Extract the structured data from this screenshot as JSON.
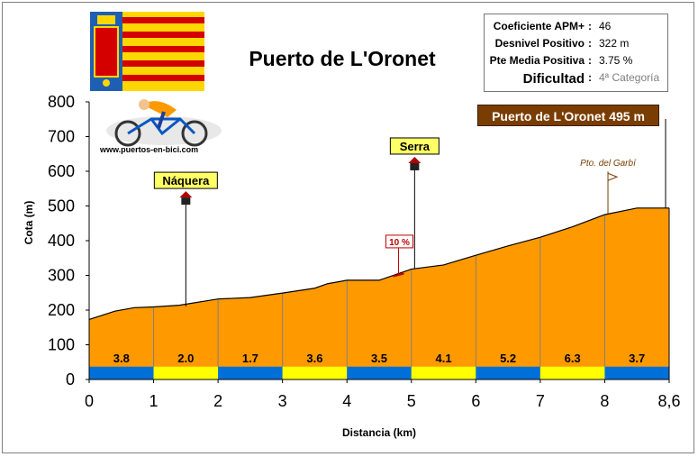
{
  "chart_data": {
    "type": "area",
    "title": "Puerto de L'Oronet",
    "xlabel": "Distancia (km)",
    "ylabel": "Cota (m)",
    "xlim": [
      0,
      9
    ],
    "ylim": [
      0,
      800
    ],
    "x_ticks": [
      "0",
      "1",
      "2",
      "3",
      "4",
      "5",
      "6",
      "7",
      "8",
      "8,6"
    ],
    "y_ticks": [
      "0",
      "100",
      "200",
      "300",
      "400",
      "500",
      "600",
      "700",
      "800"
    ],
    "profile": [
      {
        "x": 0,
        "y": 173
      },
      {
        "x": 0.4,
        "y": 197
      },
      {
        "x": 0.7,
        "y": 207
      },
      {
        "x": 1,
        "y": 209
      },
      {
        "x": 1.4,
        "y": 214
      },
      {
        "x": 2,
        "y": 232
      },
      {
        "x": 2.5,
        "y": 236
      },
      {
        "x": 3,
        "y": 249
      },
      {
        "x": 3.5,
        "y": 263
      },
      {
        "x": 3.7,
        "y": 276
      },
      {
        "x": 4,
        "y": 286
      },
      {
        "x": 4.5,
        "y": 286
      },
      {
        "x": 5,
        "y": 318
      },
      {
        "x": 5.5,
        "y": 330
      },
      {
        "x": 6,
        "y": 358
      },
      {
        "x": 6.5,
        "y": 385
      },
      {
        "x": 7,
        "y": 410
      },
      {
        "x": 7.5,
        "y": 440
      },
      {
        "x": 8,
        "y": 475
      },
      {
        "x": 8.5,
        "y": 494
      },
      {
        "x": 8.6,
        "y": 494
      }
    ],
    "segments": [
      {
        "from": 0,
        "to": 1,
        "slope": "3.8"
      },
      {
        "from": 1,
        "to": 2,
        "slope": "2.0"
      },
      {
        "from": 2,
        "to": 3,
        "slope": "1.7"
      },
      {
        "from": 3,
        "to": 4,
        "slope": "3.6"
      },
      {
        "from": 4,
        "to": 5,
        "slope": "3.5"
      },
      {
        "from": 5,
        "to": 6,
        "slope": "4.1"
      },
      {
        "from": 6,
        "to": 7,
        "slope": "5.2"
      },
      {
        "from": 7,
        "to": 8,
        "slope": "6.3"
      },
      {
        "from": 8,
        "to": 9,
        "slope": "3.7"
      }
    ],
    "towns": [
      {
        "name": "Náquera",
        "x": 1.5,
        "y": 211,
        "label_y": 553
      },
      {
        "name": "Serra",
        "x": 5.05,
        "y": 320,
        "label_y": 652
      }
    ],
    "markers": [
      {
        "label": "10 %",
        "x": 4.8,
        "y": 300,
        "label_y": 395
      },
      {
        "label": "Pto. del Garbí",
        "x": 8.05,
        "y": 478,
        "label_y": 615
      }
    ],
    "colors": {
      "fill": "#ff9900",
      "stripe_a": "#0070d8",
      "stripe_b": "#ffff00",
      "grid": "#808080",
      "summit_box": "#7a3d00"
    }
  },
  "summit_label": "Puerto de L'Oronet 495 m",
  "website": "www.puertos-en-bici.com",
  "info": [
    {
      "label": "Coeficiente APM+",
      "value": "46"
    },
    {
      "label": "Desnivel Positivo",
      "value": "322 m"
    },
    {
      "label": "Pte Media Positiva",
      "value": "3.75 %"
    },
    {
      "label": "Dificultad",
      "value": "4ª Categoría"
    }
  ]
}
